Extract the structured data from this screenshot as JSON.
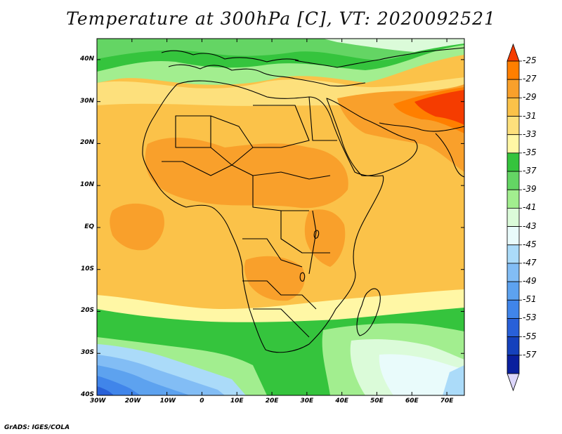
{
  "title": "Temperature at 300hPa [C], VT: 2020092521",
  "credit": "GrADS: IGES/COLA",
  "map": {
    "lon_range": [
      -30,
      75
    ],
    "lat_range": [
      -40,
      45
    ],
    "lon_ticks": [
      {
        "value": -30,
        "label": "30W"
      },
      {
        "value": -20,
        "label": "20W"
      },
      {
        "value": -10,
        "label": "10W"
      },
      {
        "value": 0,
        "label": "0"
      },
      {
        "value": 10,
        "label": "10E"
      },
      {
        "value": 20,
        "label": "20E"
      },
      {
        "value": 30,
        "label": "30E"
      },
      {
        "value": 40,
        "label": "40E"
      },
      {
        "value": 50,
        "label": "50E"
      },
      {
        "value": 60,
        "label": "60E"
      },
      {
        "value": 70,
        "label": "70E"
      }
    ],
    "lat_ticks": [
      {
        "value": 40,
        "label": "40N"
      },
      {
        "value": 30,
        "label": "30N"
      },
      {
        "value": 20,
        "label": "20N"
      },
      {
        "value": 10,
        "label": "10N"
      },
      {
        "value": 0,
        "label": "EQ"
      },
      {
        "value": -10,
        "label": "10S"
      },
      {
        "value": -20,
        "label": "20S"
      },
      {
        "value": -30,
        "label": "30S"
      },
      {
        "value": -40,
        "label": "40S"
      }
    ]
  },
  "colorbar": {
    "levels": [
      "-25",
      "-27",
      "-29",
      "-31",
      "-33",
      "-35",
      "-37",
      "-39",
      "-41",
      "-43",
      "-45",
      "-47",
      "-49",
      "-51",
      "-53",
      "-55",
      "-57"
    ],
    "colors": [
      "#f53c00",
      "#ff7f00",
      "#f9a02b",
      "#fbc249",
      "#fde07c",
      "#fff7a5",
      "#35c43d",
      "#64d564",
      "#a2ee8f",
      "#dbfbd9",
      "#e9fbfb",
      "#abdbf9",
      "#82bdf5",
      "#5da2ef",
      "#4085ea",
      "#2860d8",
      "#1541bc",
      "#0a1f9e",
      "#dcd6fa"
    ]
  }
}
